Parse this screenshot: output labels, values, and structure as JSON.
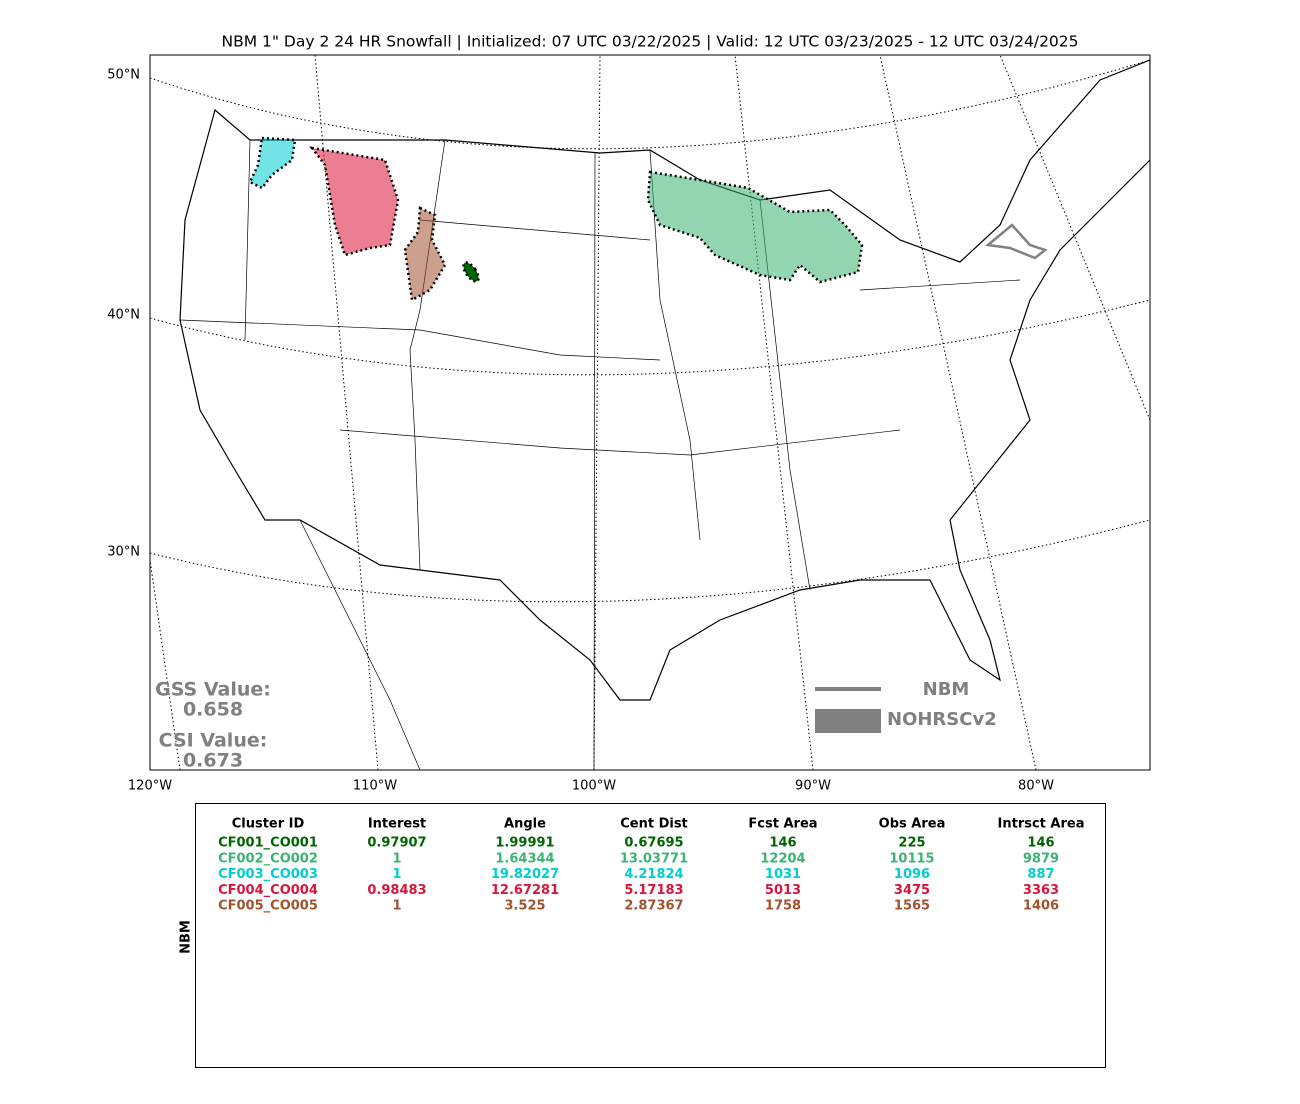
{
  "title": "NBM 1\" Day 2 24 HR Snowfall | Initialized: 07 UTC 03/22/2025 | Valid: 12 UTC 03/23/2025 - 12 UTC 03/24/2025",
  "map": {
    "lat_labels": [
      "50°N",
      "40°N",
      "30°N"
    ],
    "lon_labels": [
      "120°W",
      "110°W",
      "100°W",
      "90°W",
      "80°W"
    ],
    "gss_label": "GSS Value:",
    "gss_value": "0.658",
    "csi_label": "CSI Value:",
    "csi_value": "0.673",
    "legend": [
      {
        "name": "NBM",
        "color": "#808080"
      },
      {
        "name": "NOHRSCv2",
        "color": "#808080"
      }
    ]
  },
  "table": {
    "side_label": "NBM",
    "columns": [
      "Cluster ID",
      "Interest",
      "Angle",
      "Cent Dist",
      "Fcst Area",
      "Obs Area",
      "Intrsct Area"
    ],
    "rows": [
      {
        "color": "#006400",
        "cells": [
          "CF001_CO001",
          "0.97907",
          "1.99991",
          "0.67695",
          "146",
          "225",
          "146"
        ]
      },
      {
        "color": "#3cb371",
        "cells": [
          "CF002_CO002",
          "1",
          "1.64344",
          "13.03771",
          "12204",
          "10115",
          "9879"
        ]
      },
      {
        "color": "#00ced1",
        "cells": [
          "CF003_CO003",
          "1",
          "19.82027",
          "4.21824",
          "1031",
          "1096",
          "887"
        ]
      },
      {
        "color": "#dc143c",
        "cells": [
          "CF004_CO004",
          "0.98483",
          "12.67281",
          "5.17183",
          "5013",
          "3475",
          "3363"
        ]
      },
      {
        "color": "#a0522d",
        "cells": [
          "CF005_CO005",
          "1",
          "3.525",
          "2.87367",
          "1758",
          "1565",
          "1406"
        ]
      }
    ]
  }
}
